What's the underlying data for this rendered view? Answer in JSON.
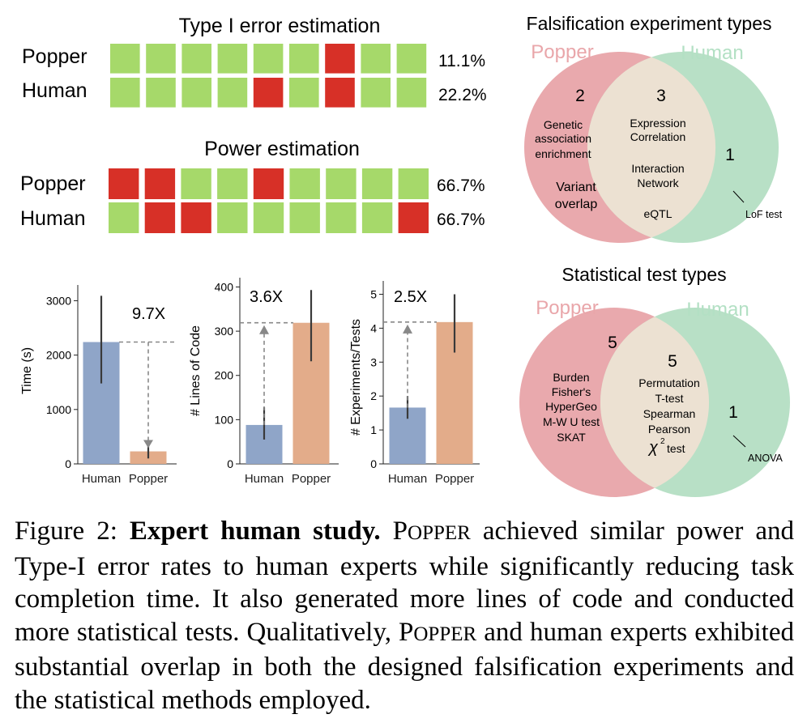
{
  "colors": {
    "green_cell": "#a6d96a",
    "red_cell": "#d73027",
    "human_bar": "#8fa5c8",
    "popper_bar": "#e3ac8a",
    "popper_circle": "#e9a9ad",
    "human_circle": "#b8e0c6",
    "overlap": "#ece1d2",
    "popper_label": "#e9a6aa",
    "human_label": "#b3e0c4"
  },
  "chart_data": [
    {
      "type": "heatmap",
      "title": "Type I error estimation",
      "rows": [
        {
          "name": "Popper",
          "cells": [
            0,
            0,
            0,
            0,
            0,
            0,
            1,
            0,
            0
          ],
          "rate": "11.1%"
        },
        {
          "name": "Human",
          "cells": [
            0,
            0,
            0,
            0,
            1,
            0,
            1,
            0,
            0
          ],
          "rate": "22.2%"
        }
      ]
    },
    {
      "type": "heatmap",
      "title": "Power estimation",
      "rows": [
        {
          "name": "Popper",
          "cells": [
            1,
            1,
            0,
            0,
            1,
            0,
            0,
            0,
            0
          ],
          "rate": "66.7%"
        },
        {
          "name": "Human",
          "cells": [
            0,
            1,
            1,
            0,
            0,
            0,
            0,
            0,
            1
          ],
          "rate": "66.7%"
        }
      ]
    },
    {
      "type": "bar",
      "categories": [
        "Human",
        "Popper"
      ],
      "values": [
        2240,
        230
      ],
      "error_low": [
        1480,
        100
      ],
      "error_high": [
        3090,
        350
      ],
      "ylabel": "Time (s)",
      "ylim": [
        0,
        3200
      ],
      "yticks": [
        0,
        1000,
        2000,
        3000
      ],
      "ratio_label": "9.7X",
      "arrow": "down"
    },
    {
      "type": "bar",
      "categories": [
        "Human",
        "Popper"
      ],
      "values": [
        88,
        319
      ],
      "error_low": [
        55,
        232
      ],
      "error_high": [
        128,
        393
      ],
      "ylabel": "# Lines of Code",
      "ylim": [
        0,
        410
      ],
      "yticks": [
        0,
        100,
        200,
        300,
        400
      ],
      "ratio_label": "3.6X",
      "arrow": "up"
    },
    {
      "type": "bar",
      "categories": [
        "Human",
        "Popper"
      ],
      "values": [
        1.66,
        4.18
      ],
      "error_low": [
        1.33,
        3.28
      ],
      "error_high": [
        2.0,
        5.0
      ],
      "ylabel": "# Experiments/Tests",
      "ylim": [
        0,
        5.25
      ],
      "yticks": [
        0,
        1,
        2,
        3,
        4,
        5
      ],
      "ratio_label": "2.5X",
      "arrow": "up"
    },
    {
      "type": "venn",
      "title": "Falsification experiment types",
      "sets": [
        "Popper",
        "Human"
      ],
      "counts": {
        "popper_only": "2",
        "both": "3",
        "human_only": "1"
      },
      "popper_only_items": [
        "Genetic",
        "association",
        "enrichment",
        "Variant",
        "overlap"
      ],
      "both_items": [
        "Expression",
        "Correlation",
        "Interaction",
        "Network",
        "eQTL"
      ],
      "human_only_items": [
        "LoF test"
      ]
    },
    {
      "type": "venn",
      "title": "Statistical test types",
      "sets": [
        "Popper",
        "Human"
      ],
      "counts": {
        "popper_only": "5",
        "both": "5",
        "human_only": "1"
      },
      "popper_only_items": [
        "Burden",
        "Fisher's",
        "HyperGeo",
        "M-W U test",
        "SKAT"
      ],
      "both_items": [
        "Permutation",
        "T-test",
        "Spearman",
        "Pearson",
        "χ",
        "2",
        "test"
      ],
      "human_only_items": [
        "ANOVA"
      ]
    }
  ],
  "caption": {
    "prefix": "Figure 2: ",
    "bold": "Expert human study.",
    "p_first": " P",
    "p_smallcaps": "OPPER",
    "text1": " achieved similar power and Type-I error rates to human experts while significantly reducing task completion time. It also generated more lines of code and conducted more statistical tests. Qualitatively, ",
    "p2_first": "P",
    "p2_smallcaps": "OPPER",
    "text2": " and human experts exhibited substantial overlap in both the designed falsification experiments and the statistical methods employed."
  }
}
